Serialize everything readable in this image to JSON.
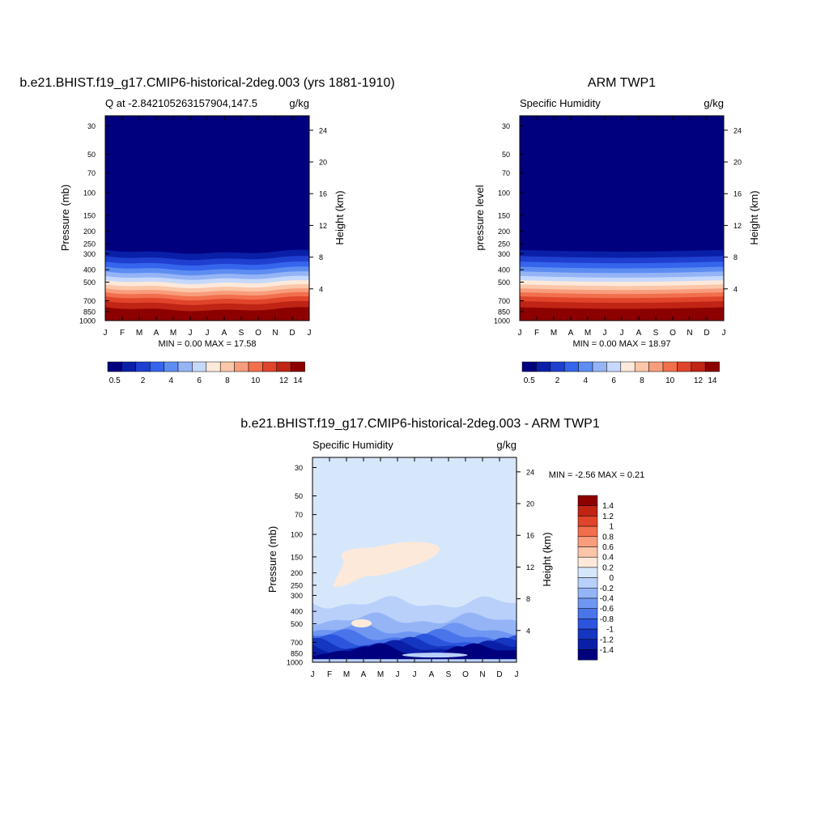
{
  "colors": {
    "top_levels": [
      "#00007f",
      "#0a1fa8",
      "#1f3fd0",
      "#3565ec",
      "#5e8df2",
      "#94b4f6",
      "#c6d8fb",
      "#fde9da",
      "#fbc6a9",
      "#f89d7c",
      "#f26f4d",
      "#e0442a",
      "#bf2414",
      "#8c0000"
    ],
    "diff_levels": [
      "#8c0000",
      "#bf2414",
      "#e0442a",
      "#f26f4d",
      "#f89d7c",
      "#fbc6a9",
      "#fde9da",
      "#d6e7fc",
      "#b8d0fa",
      "#94b4f6",
      "#6f97f2",
      "#4a74ea",
      "#2c55de",
      "#1536c0",
      "#0a1fa8",
      "#00007f"
    ]
  },
  "chart_data": [
    {
      "type": "heatmap",
      "title": "b.e21.BHIST.f19_g17.CMIP6-historical-2deg.003 (yrs 1881-1910)",
      "left_label": "Q at -2.842105263157904,147.5",
      "right_label": "g/kg",
      "ylabel": "Pressure (mb)",
      "ylabel_right": "Height (km)",
      "x_ticks": [
        "J",
        "F",
        "M",
        "A",
        "M",
        "J",
        "J",
        "A",
        "S",
        "O",
        "N",
        "D",
        "J"
      ],
      "pressure_ticks": [
        "30",
        "50",
        "70",
        "100",
        "150",
        "200",
        "250",
        "300",
        "400",
        "500",
        "700",
        "850",
        "1000"
      ],
      "height_ticks": [
        "24",
        "20",
        "16",
        "12",
        "8",
        "4"
      ],
      "min_max": "MIN =   0.00 MAX =  17.58",
      "colorbar_labels": [
        "0.5",
        "2",
        "4",
        "6",
        "8",
        "10",
        "12",
        "14"
      ]
    },
    {
      "type": "heatmap",
      "title": "ARM TWP1",
      "left_label": "Specific Humidity",
      "right_label": "g/kg",
      "ylabel": "pressure level",
      "ylabel_right": "Height (km)",
      "x_ticks": [
        "J",
        "F",
        "M",
        "A",
        "M",
        "J",
        "J",
        "A",
        "S",
        "O",
        "N",
        "D",
        "J"
      ],
      "pressure_ticks": [
        "30",
        "50",
        "70",
        "100",
        "150",
        "200",
        "250",
        "300",
        "400",
        "500",
        "700",
        "850",
        "1000"
      ],
      "height_ticks": [
        "24",
        "20",
        "16",
        "12",
        "8",
        "4"
      ],
      "min_max": "MIN =   0.00 MAX =  18.97",
      "colorbar_labels": [
        "0.5",
        "2",
        "4",
        "6",
        "8",
        "10",
        "12",
        "14"
      ]
    },
    {
      "type": "heatmap",
      "title": "b.e21.BHIST.f19_g17.CMIP6-historical-2deg.003 - ARM TWP1",
      "left_label": "Specific Humidity",
      "right_label": "g/kg",
      "ylabel": "Pressure (mb)",
      "ylabel_right": "Height (km)",
      "x_ticks": [
        "J",
        "F",
        "M",
        "A",
        "M",
        "J",
        "J",
        "A",
        "S",
        "O",
        "N",
        "D",
        "J"
      ],
      "pressure_ticks": [
        "30",
        "50",
        "70",
        "100",
        "150",
        "200",
        "250",
        "300",
        "400",
        "500",
        "700",
        "850",
        "1000"
      ],
      "height_ticks": [
        "24",
        "20",
        "16",
        "12",
        "8",
        "4"
      ],
      "min_max": "MIN =  -2.56 MAX =   0.21",
      "colorbar_labels": [
        "1.4",
        "1.2",
        "1",
        "0.8",
        "0.6",
        "0.4",
        "0.2",
        "0",
        "-0.2",
        "-0.4",
        "-0.6",
        "-0.8",
        "-1",
        "-1.2",
        "-1.4"
      ]
    }
  ]
}
